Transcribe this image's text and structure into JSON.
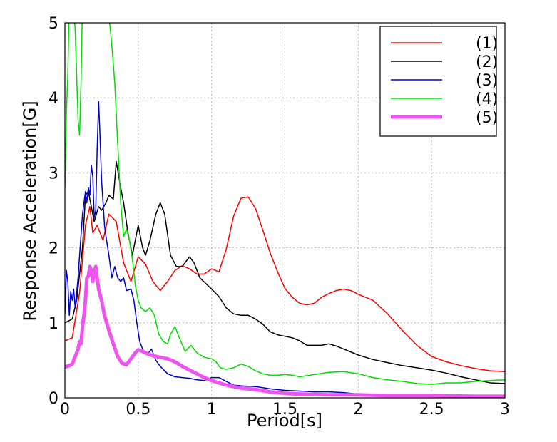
{
  "chart_data": {
    "type": "line",
    "title": "",
    "xlabel": "Period[s]",
    "ylabel": "Response Acceleration[G]",
    "xlim": [
      0,
      3
    ],
    "ylim": [
      0,
      5
    ],
    "x_ticks": [
      "0",
      "0.5",
      "1",
      "1.5",
      "2",
      "2.5",
      "3"
    ],
    "y_ticks": [
      "0",
      "1",
      "2",
      "3",
      "4",
      "5"
    ],
    "grid": true,
    "legend_position": "top-right",
    "series": [
      {
        "name": "(1)",
        "color": "#ff0000",
        "width": 1.5,
        "points": [
          [
            0.0,
            0.76
          ],
          [
            0.05,
            0.8
          ],
          [
            0.1,
            1.4
          ],
          [
            0.14,
            2.3
          ],
          [
            0.17,
            2.55
          ],
          [
            0.19,
            2.2
          ],
          [
            0.22,
            2.3
          ],
          [
            0.26,
            2.1
          ],
          [
            0.3,
            2.45
          ],
          [
            0.35,
            2.35
          ],
          [
            0.4,
            1.8
          ],
          [
            0.45,
            1.55
          ],
          [
            0.5,
            1.88
          ],
          [
            0.55,
            1.78
          ],
          [
            0.6,
            1.55
          ],
          [
            0.65,
            1.43
          ],
          [
            0.7,
            1.55
          ],
          [
            0.75,
            1.7
          ],
          [
            0.8,
            1.76
          ],
          [
            0.85,
            1.72
          ],
          [
            0.9,
            1.65
          ],
          [
            0.95,
            1.65
          ],
          [
            1.0,
            1.72
          ],
          [
            1.05,
            1.68
          ],
          [
            1.1,
            1.98
          ],
          [
            1.15,
            2.42
          ],
          [
            1.2,
            2.66
          ],
          [
            1.25,
            2.68
          ],
          [
            1.3,
            2.52
          ],
          [
            1.35,
            2.23
          ],
          [
            1.4,
            1.93
          ],
          [
            1.45,
            1.68
          ],
          [
            1.5,
            1.46
          ],
          [
            1.55,
            1.34
          ],
          [
            1.6,
            1.26
          ],
          [
            1.65,
            1.24
          ],
          [
            1.7,
            1.26
          ],
          [
            1.75,
            1.34
          ],
          [
            1.8,
            1.39
          ],
          [
            1.85,
            1.43
          ],
          [
            1.9,
            1.45
          ],
          [
            1.95,
            1.43
          ],
          [
            2.0,
            1.38
          ],
          [
            2.1,
            1.3
          ],
          [
            2.2,
            1.12
          ],
          [
            2.3,
            0.9
          ],
          [
            2.4,
            0.7
          ],
          [
            2.5,
            0.55
          ],
          [
            2.6,
            0.48
          ],
          [
            2.7,
            0.43
          ],
          [
            2.8,
            0.39
          ],
          [
            2.9,
            0.36
          ],
          [
            3.0,
            0.35
          ]
        ]
      },
      {
        "name": "(2)",
        "color": "#000000",
        "width": 1.5,
        "points": [
          [
            0.0,
            1.0
          ],
          [
            0.05,
            1.05
          ],
          [
            0.08,
            1.3
          ],
          [
            0.12,
            2.0
          ],
          [
            0.14,
            2.7
          ],
          [
            0.16,
            2.75
          ],
          [
            0.18,
            2.55
          ],
          [
            0.2,
            2.35
          ],
          [
            0.23,
            2.55
          ],
          [
            0.25,
            2.5
          ],
          [
            0.28,
            2.6
          ],
          [
            0.3,
            2.7
          ],
          [
            0.33,
            2.65
          ],
          [
            0.35,
            3.15
          ],
          [
            0.38,
            2.8
          ],
          [
            0.4,
            2.6
          ],
          [
            0.43,
            2.2
          ],
          [
            0.46,
            1.9
          ],
          [
            0.5,
            2.3
          ],
          [
            0.53,
            2.0
          ],
          [
            0.55,
            1.9
          ],
          [
            0.58,
            2.1
          ],
          [
            0.62,
            2.45
          ],
          [
            0.65,
            2.6
          ],
          [
            0.68,
            2.45
          ],
          [
            0.72,
            1.9
          ],
          [
            0.76,
            1.75
          ],
          [
            0.8,
            1.75
          ],
          [
            0.85,
            1.88
          ],
          [
            0.88,
            1.8
          ],
          [
            0.92,
            1.6
          ],
          [
            1.0,
            1.45
          ],
          [
            1.05,
            1.35
          ],
          [
            1.1,
            1.2
          ],
          [
            1.15,
            1.12
          ],
          [
            1.2,
            1.1
          ],
          [
            1.25,
            1.1
          ],
          [
            1.3,
            1.05
          ],
          [
            1.35,
            0.98
          ],
          [
            1.4,
            0.88
          ],
          [
            1.45,
            0.84
          ],
          [
            1.5,
            0.82
          ],
          [
            1.55,
            0.8
          ],
          [
            1.6,
            0.76
          ],
          [
            1.65,
            0.7
          ],
          [
            1.7,
            0.7
          ],
          [
            1.75,
            0.7
          ],
          [
            1.8,
            0.72
          ],
          [
            1.85,
            0.69
          ],
          [
            1.9,
            0.65
          ],
          [
            2.0,
            0.57
          ],
          [
            2.1,
            0.51
          ],
          [
            2.2,
            0.47
          ],
          [
            2.3,
            0.43
          ],
          [
            2.4,
            0.4
          ],
          [
            2.5,
            0.37
          ],
          [
            2.6,
            0.33
          ],
          [
            2.7,
            0.28
          ],
          [
            2.8,
            0.24
          ],
          [
            2.9,
            0.2
          ],
          [
            3.0,
            0.19
          ]
        ]
      },
      {
        "name": "(3)",
        "color": "#0000cc",
        "width": 1.5,
        "points": [
          [
            0.0,
            1.12
          ],
          [
            0.01,
            1.7
          ],
          [
            0.02,
            1.55
          ],
          [
            0.03,
            1.1
          ],
          [
            0.04,
            1.42
          ],
          [
            0.05,
            1.3
          ],
          [
            0.06,
            1.45
          ],
          [
            0.07,
            1.2
          ],
          [
            0.08,
            1.4
          ],
          [
            0.09,
            1.6
          ],
          [
            0.1,
            1.9
          ],
          [
            0.12,
            2.45
          ],
          [
            0.14,
            2.75
          ],
          [
            0.15,
            2.6
          ],
          [
            0.16,
            2.8
          ],
          [
            0.17,
            2.7
          ],
          [
            0.18,
            3.1
          ],
          [
            0.19,
            2.95
          ],
          [
            0.2,
            2.4
          ],
          [
            0.21,
            2.5
          ],
          [
            0.22,
            3.3
          ],
          [
            0.23,
            3.95
          ],
          [
            0.24,
            3.45
          ],
          [
            0.25,
            2.9
          ],
          [
            0.26,
            2.6
          ],
          [
            0.27,
            2.3
          ],
          [
            0.28,
            2.15
          ],
          [
            0.3,
            1.9
          ],
          [
            0.32,
            1.6
          ],
          [
            0.34,
            1.75
          ],
          [
            0.36,
            1.6
          ],
          [
            0.38,
            1.55
          ],
          [
            0.4,
            1.6
          ],
          [
            0.42,
            1.43
          ],
          [
            0.45,
            1.45
          ],
          [
            0.47,
            1.3
          ],
          [
            0.49,
            1.0
          ],
          [
            0.51,
            0.75
          ],
          [
            0.53,
            0.65
          ],
          [
            0.55,
            0.58
          ],
          [
            0.57,
            0.6
          ],
          [
            0.59,
            0.65
          ],
          [
            0.62,
            0.5
          ],
          [
            0.65,
            0.42
          ],
          [
            0.7,
            0.32
          ],
          [
            0.75,
            0.28
          ],
          [
            0.8,
            0.27
          ],
          [
            0.85,
            0.26
          ],
          [
            0.9,
            0.24
          ],
          [
            0.95,
            0.23
          ],
          [
            1.0,
            0.27
          ],
          [
            1.05,
            0.27
          ],
          [
            1.1,
            0.22
          ],
          [
            1.15,
            0.17
          ],
          [
            1.2,
            0.16
          ],
          [
            1.3,
            0.15
          ],
          [
            1.4,
            0.12
          ],
          [
            1.5,
            0.1
          ],
          [
            1.6,
            0.09
          ],
          [
            1.7,
            0.08
          ],
          [
            1.8,
            0.08
          ],
          [
            1.9,
            0.07
          ],
          [
            2.0,
            0.05
          ],
          [
            2.2,
            0.04
          ],
          [
            2.4,
            0.03
          ],
          [
            2.6,
            0.03
          ],
          [
            2.8,
            0.02
          ],
          [
            3.0,
            0.02
          ]
        ]
      },
      {
        "name": "(4)",
        "color": "#00dd00",
        "width": 1.5,
        "points": [
          [
            0.0,
            2.8
          ],
          [
            0.01,
            3.8
          ],
          [
            0.02,
            4.3
          ],
          [
            0.03,
            5.3
          ],
          [
            0.05,
            5.4
          ],
          [
            0.06,
            5.2
          ],
          [
            0.07,
            4.9
          ],
          [
            0.08,
            4.3
          ],
          [
            0.09,
            3.7
          ],
          [
            0.1,
            3.5
          ],
          [
            0.11,
            4.2
          ],
          [
            0.12,
            5.3
          ],
          [
            0.15,
            5.5
          ],
          [
            0.2,
            5.5
          ],
          [
            0.25,
            5.4
          ],
          [
            0.28,
            5.3
          ],
          [
            0.3,
            5.1
          ],
          [
            0.32,
            4.7
          ],
          [
            0.34,
            4.2
          ],
          [
            0.36,
            3.4
          ],
          [
            0.38,
            2.6
          ],
          [
            0.4,
            2.15
          ],
          [
            0.42,
            2.25
          ],
          [
            0.44,
            2.1
          ],
          [
            0.46,
            1.85
          ],
          [
            0.48,
            1.5
          ],
          [
            0.5,
            1.3
          ],
          [
            0.52,
            1.2
          ],
          [
            0.55,
            1.15
          ],
          [
            0.58,
            1.2
          ],
          [
            0.61,
            1.1
          ],
          [
            0.64,
            0.85
          ],
          [
            0.67,
            0.75
          ],
          [
            0.7,
            0.72
          ],
          [
            0.72,
            0.85
          ],
          [
            0.75,
            0.95
          ],
          [
            0.78,
            0.8
          ],
          [
            0.82,
            0.62
          ],
          [
            0.86,
            0.7
          ],
          [
            0.9,
            0.6
          ],
          [
            0.95,
            0.54
          ],
          [
            1.0,
            0.52
          ],
          [
            1.03,
            0.48
          ],
          [
            1.06,
            0.4
          ],
          [
            1.1,
            0.38
          ],
          [
            1.15,
            0.4
          ],
          [
            1.2,
            0.45
          ],
          [
            1.25,
            0.42
          ],
          [
            1.3,
            0.36
          ],
          [
            1.35,
            0.32
          ],
          [
            1.4,
            0.3
          ],
          [
            1.45,
            0.3
          ],
          [
            1.5,
            0.31
          ],
          [
            1.55,
            0.3
          ],
          [
            1.6,
            0.28
          ],
          [
            1.7,
            0.31
          ],
          [
            1.8,
            0.34
          ],
          [
            1.9,
            0.35
          ],
          [
            2.0,
            0.32
          ],
          [
            2.1,
            0.27
          ],
          [
            2.2,
            0.24
          ],
          [
            2.3,
            0.22
          ],
          [
            2.4,
            0.19
          ],
          [
            2.5,
            0.18
          ],
          [
            2.6,
            0.2
          ],
          [
            2.7,
            0.2
          ],
          [
            2.8,
            0.22
          ],
          [
            2.9,
            0.23
          ],
          [
            3.0,
            0.24
          ]
        ]
      },
      {
        "name": "(5)",
        "color": "#ee55ee",
        "width": 5,
        "points": [
          [
            0.0,
            0.41
          ],
          [
            0.03,
            0.43
          ],
          [
            0.05,
            0.45
          ],
          [
            0.07,
            0.55
          ],
          [
            0.09,
            0.65
          ],
          [
            0.1,
            0.75
          ],
          [
            0.11,
            0.72
          ],
          [
            0.12,
            0.95
          ],
          [
            0.13,
            1.1
          ],
          [
            0.14,
            1.3
          ],
          [
            0.15,
            1.6
          ],
          [
            0.16,
            1.62
          ],
          [
            0.17,
            1.75
          ],
          [
            0.18,
            1.7
          ],
          [
            0.19,
            1.55
          ],
          [
            0.2,
            1.65
          ],
          [
            0.21,
            1.75
          ],
          [
            0.22,
            1.6
          ],
          [
            0.23,
            1.45
          ],
          [
            0.25,
            1.3
          ],
          [
            0.27,
            1.1
          ],
          [
            0.3,
            0.9
          ],
          [
            0.33,
            0.72
          ],
          [
            0.36,
            0.55
          ],
          [
            0.39,
            0.46
          ],
          [
            0.42,
            0.44
          ],
          [
            0.45,
            0.52
          ],
          [
            0.48,
            0.6
          ],
          [
            0.5,
            0.64
          ],
          [
            0.53,
            0.62
          ],
          [
            0.56,
            0.59
          ],
          [
            0.6,
            0.56
          ],
          [
            0.65,
            0.54
          ],
          [
            0.7,
            0.52
          ],
          [
            0.75,
            0.48
          ],
          [
            0.8,
            0.42
          ],
          [
            0.85,
            0.37
          ],
          [
            0.9,
            0.32
          ],
          [
            0.95,
            0.27
          ],
          [
            1.0,
            0.23
          ],
          [
            1.05,
            0.2
          ],
          [
            1.1,
            0.17
          ],
          [
            1.15,
            0.15
          ],
          [
            1.2,
            0.13
          ],
          [
            1.3,
            0.11
          ],
          [
            1.4,
            0.08
          ],
          [
            1.5,
            0.06
          ],
          [
            1.6,
            0.05
          ],
          [
            1.8,
            0.04
          ],
          [
            2.0,
            0.04
          ],
          [
            2.2,
            0.03
          ],
          [
            2.5,
            0.03
          ],
          [
            2.8,
            0.02
          ],
          [
            3.0,
            0.02
          ]
        ]
      }
    ]
  }
}
